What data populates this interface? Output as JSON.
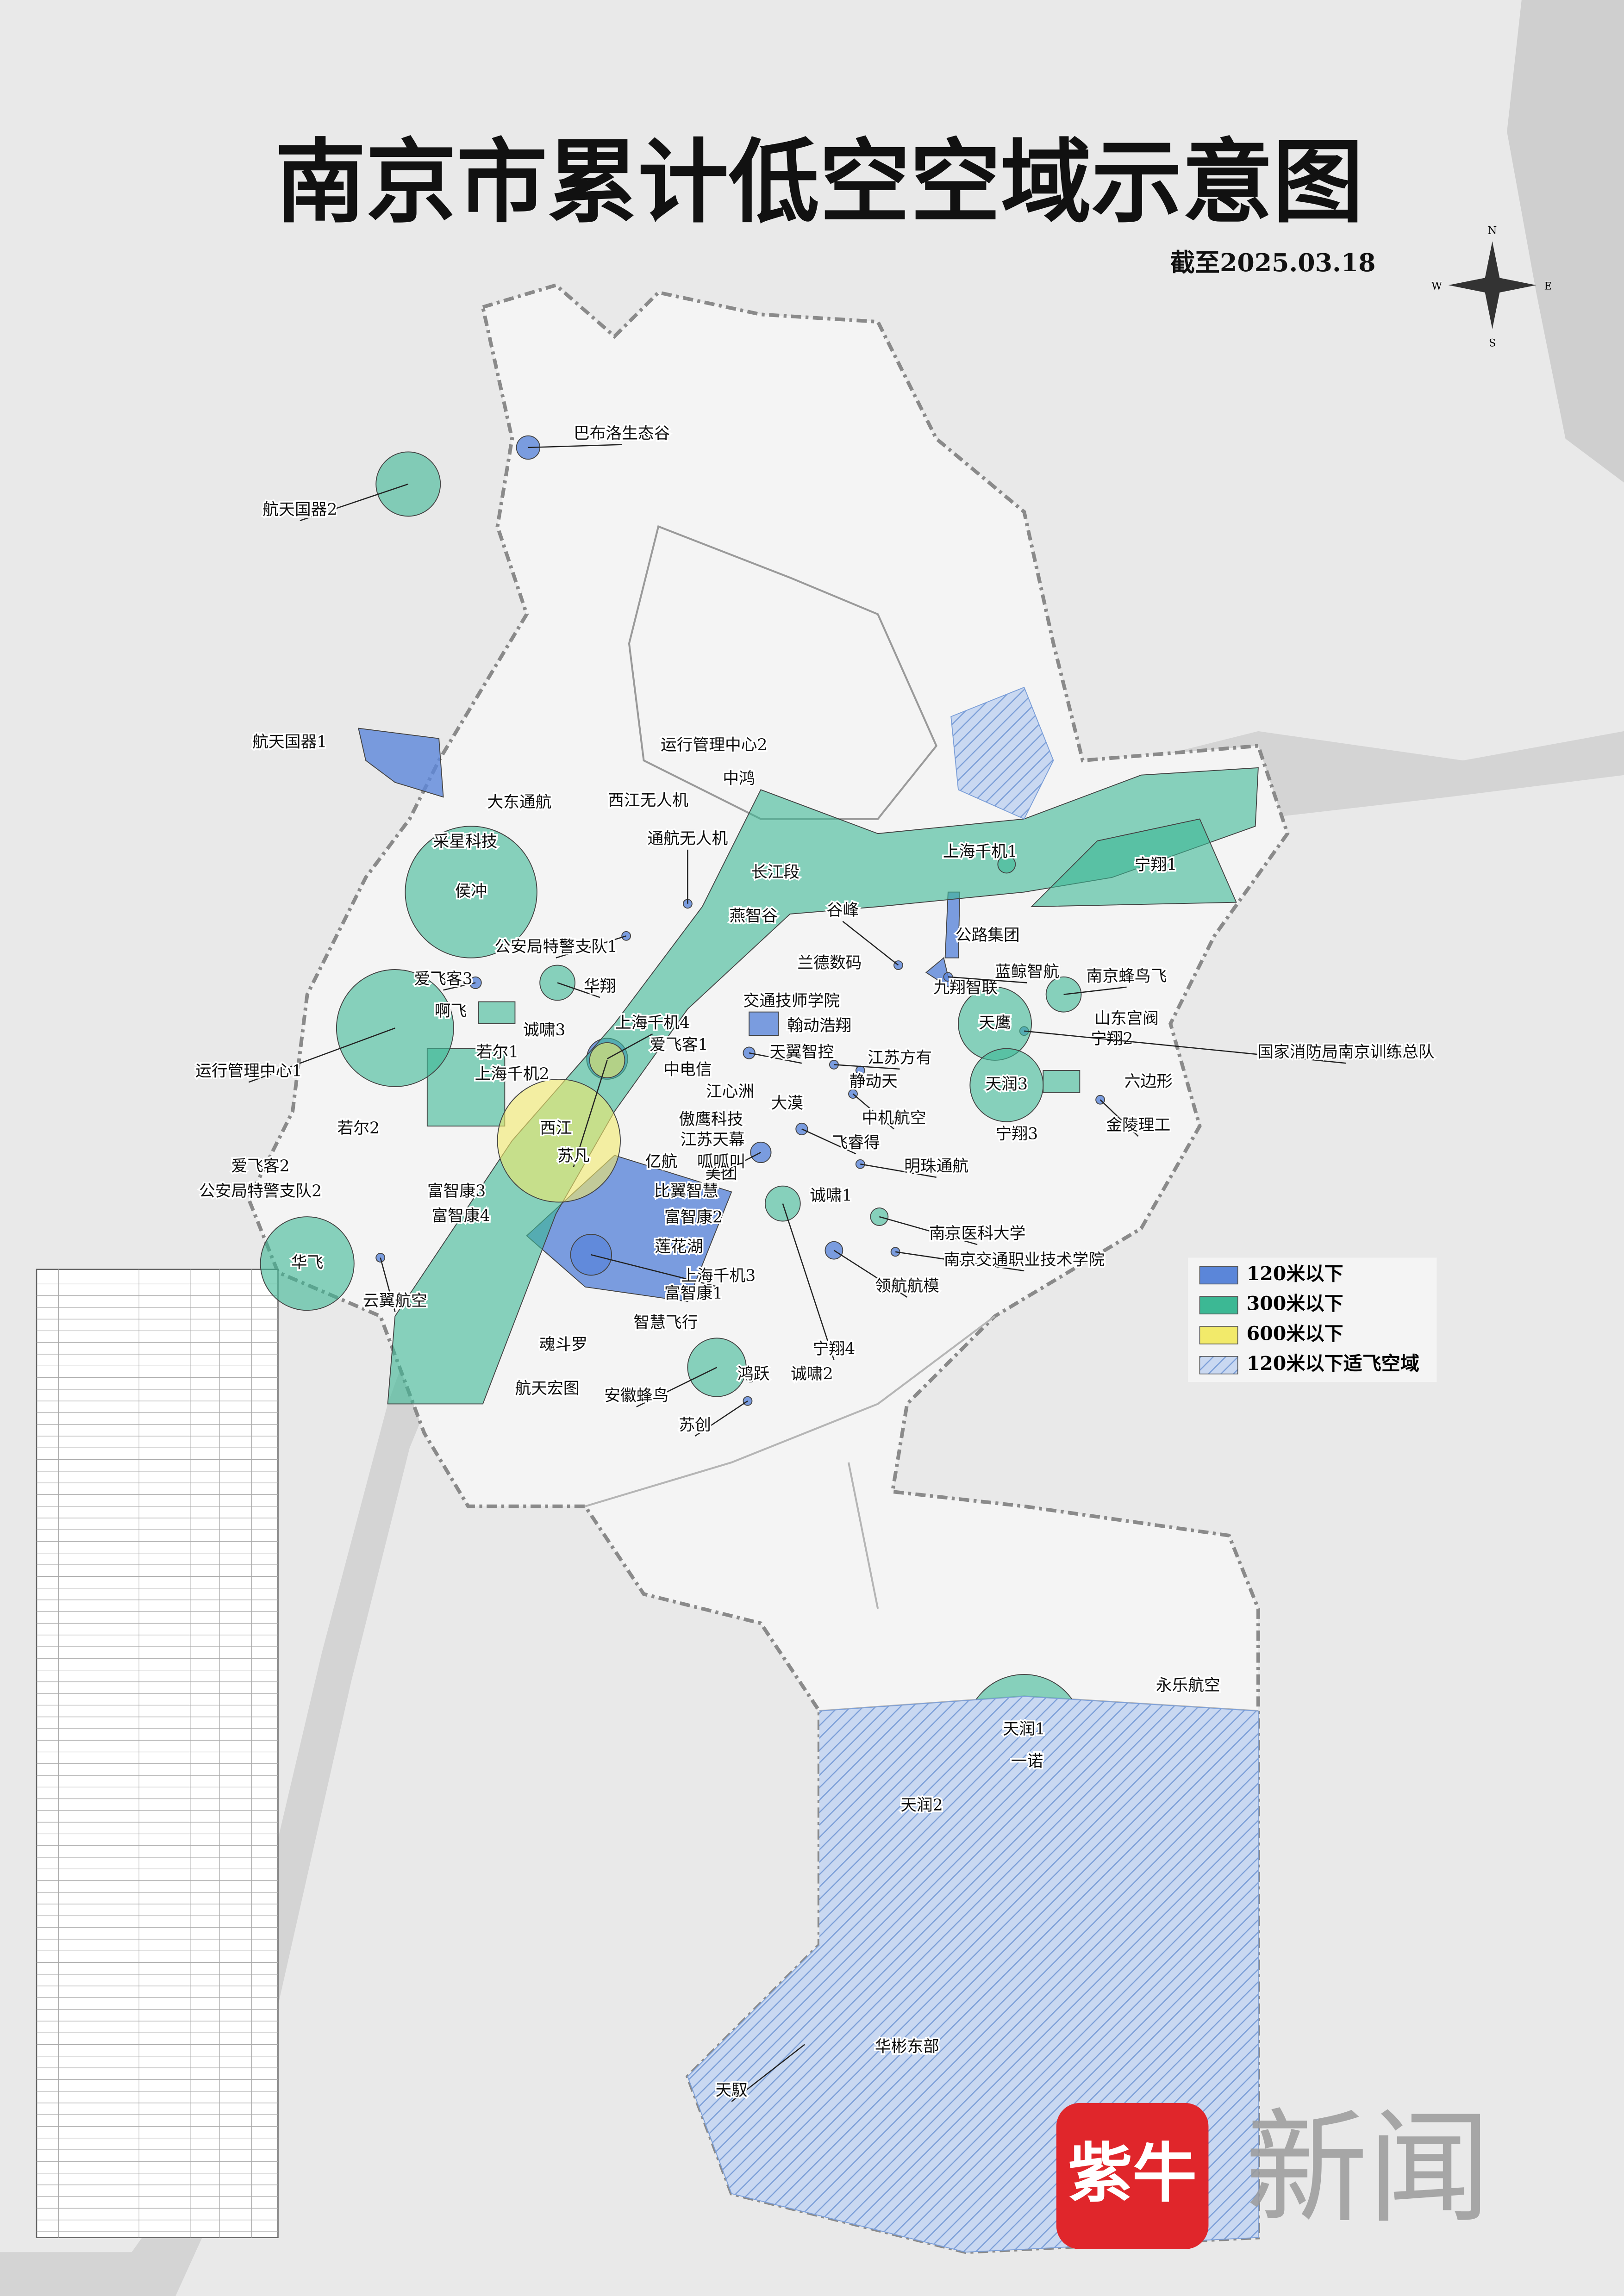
{
  "title": "南京市累计低空空域示意图",
  "date": "截至2025.03.18",
  "compass": [
    "N",
    "E",
    "S",
    "W"
  ],
  "legend": [
    {
      "label": "120米以下",
      "color": "#5b86d9",
      "areas": [
        "巴布洛生态谷",
        "航天国器1",
        "中鸿",
        "运行管理中心2",
        "大东通航",
        "西江无人机",
        "通航无人机",
        "采星科技",
        "公安局特警支队1",
        "爱飞客3",
        "诚啸3",
        "上海千机4",
        "爱飞客1",
        "天翼智控",
        "中电信",
        "江心洲",
        "傲鹰科技",
        "江苏天幕",
        "亿航",
        "美团",
        "比翼智慧",
        "富智康2",
        "莲花湖",
        "上海千机3",
        "富智康1",
        "智慧飞行",
        "魂斗罗",
        "航天宏图",
        "富智康3",
        "富智康4",
        "爱飞客2",
        "公安局特警支队2",
        "云翼航空",
        "鸿跃",
        "诚啸2",
        "苏创",
        "领航航模",
        "南京交通职业技术学院",
        "诚啸1",
        "明珠通航",
        "飞睿得",
        "呱呱叫",
        "中机航空",
        "大漠",
        "静动天",
        "江苏方有",
        "翰动浩翔",
        "交通技师学院",
        "兰德数码",
        "谷峰",
        "九翔智联",
        "蓝鲸智航",
        "公路集团",
        "山东宫阀",
        "宁翔2",
        "国家消防局南京训练总队",
        "金陵理工",
        "宁翔3",
        "天馭"
      ]
    },
    {
      "label": "300米以下",
      "color": "#3cb894",
      "areas": [
        "长江段",
        "燕智谷",
        "上海千机1",
        "宁翔1",
        "侯冲",
        "航天国器2",
        "华翔",
        "若尔1",
        "若尔2",
        "运行管理中心1",
        "啊飞",
        "上海千机2",
        "华飞",
        "天鹰",
        "南京蜂鸟飞",
        "天润3",
        "六边形",
        "南京医科大学",
        "宁翔4",
        "安徽蜂鸟",
        "天润1",
        "天润2",
        "华彬东部"
      ]
    },
    {
      "label": "600米以下",
      "color": "#f2ea6a",
      "areas": [
        "西江",
        "苏凡"
      ]
    },
    {
      "label": "120米以下适飞空域",
      "color": "#7c9fd8",
      "areas": [
        "永乐航空",
        "一诺"
      ]
    }
  ],
  "watermark": {
    "logo": "紫牛",
    "text": "新闻"
  }
}
